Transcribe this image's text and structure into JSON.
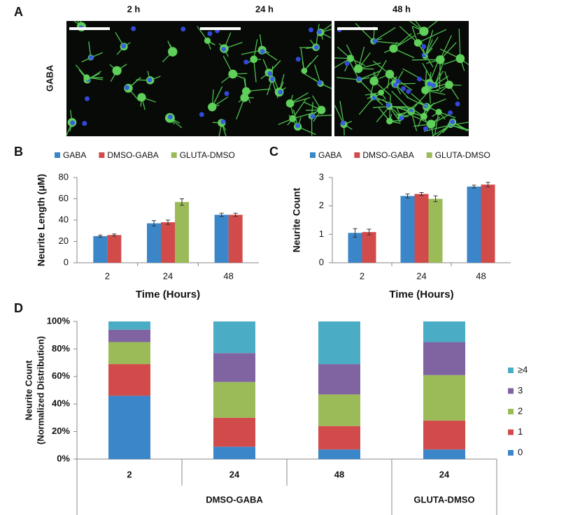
{
  "chart_data": [
    {
      "type": "image",
      "panel_label": "A",
      "row_label": "GABA",
      "columns": [
        "2 h",
        "24 h",
        "48 h"
      ]
    },
    {
      "type": "bar",
      "panel_label": "B",
      "x_label": "Time (Hours)",
      "y_label": "Neurite Length (μM)",
      "categories": [
        "2",
        "24",
        "48"
      ],
      "ylim": [
        0,
        80
      ],
      "yticks": [
        0,
        20,
        40,
        60,
        80
      ],
      "series": [
        {
          "name": "GABA",
          "color": "#3a86c8",
          "values": [
            25,
            37,
            45
          ],
          "errors": [
            1,
            2.5,
            1.5
          ]
        },
        {
          "name": "DMSO-GABA",
          "color": "#d24b4b",
          "values": [
            26,
            38,
            45
          ],
          "errors": [
            1,
            2,
            1.5
          ]
        },
        {
          "name": "GLUTA-DMSO",
          "color": "#9bbb59",
          "values": [
            null,
            57,
            null
          ],
          "errors": [
            null,
            3,
            null
          ]
        }
      ]
    },
    {
      "type": "bar",
      "panel_label": "C",
      "x_label": "Time (Hours)",
      "y_label": "Neurite Count",
      "categories": [
        "2",
        "24",
        "48"
      ],
      "ylim": [
        0,
        3
      ],
      "yticks": [
        0,
        1,
        2,
        3
      ],
      "series": [
        {
          "name": "GABA",
          "color": "#3a86c8",
          "values": [
            1.05,
            2.35,
            2.68
          ],
          "errors": [
            0.15,
            0.07,
            0.05
          ]
        },
        {
          "name": "DMSO-GABA",
          "color": "#d24b4b",
          "values": [
            1.08,
            2.42,
            2.75
          ],
          "errors": [
            0.1,
            0.05,
            0.08
          ]
        },
        {
          "name": "GLUTA-DMSO",
          "color": "#9bbb59",
          "values": [
            null,
            2.25,
            null
          ],
          "errors": [
            null,
            0.1,
            null
          ]
        }
      ]
    },
    {
      "type": "stacked_bar",
      "panel_label": "D",
      "y_label": [
        "Neurite Count",
        "(Normalized Distribution)"
      ],
      "groups": [
        {
          "name": "DMSO-GABA",
          "categories": [
            "2",
            "24",
            "48"
          ]
        },
        {
          "name": "GLUTA-DMSO",
          "categories": [
            "24"
          ]
        }
      ],
      "ylim": [
        0,
        100
      ],
      "yticks": [
        {
          "value": 0,
          "label": "0%"
        },
        {
          "value": 20,
          "label": "20%"
        },
        {
          "value": 40,
          "label": "40%"
        },
        {
          "value": 60,
          "label": "60%"
        },
        {
          "value": 80,
          "label": "80%"
        },
        {
          "value": 100,
          "label": "100%"
        }
      ],
      "series": [
        {
          "name": "0",
          "color": "#3a86c8",
          "values": [
            46,
            9,
            7,
            7
          ]
        },
        {
          "name": "1",
          "color": "#d24b4b",
          "values": [
            23,
            21,
            17,
            21
          ]
        },
        {
          "name": "2",
          "color": "#9bbb59",
          "values": [
            16,
            26,
            23,
            33
          ]
        },
        {
          "name": "3",
          "color": "#8064a2",
          "values": [
            9,
            21,
            22,
            24
          ]
        },
        {
          "name": "≥4",
          "color": "#4bacc6",
          "values": [
            6,
            23,
            31,
            15
          ]
        }
      ]
    }
  ]
}
